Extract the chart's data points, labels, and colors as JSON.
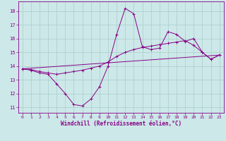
{
  "xlabel": "Windchill (Refroidissement éolien,°C)",
  "bg_color": "#cce8e8",
  "grid_color": "#aacccc",
  "line_color": "#880088",
  "xlim": [
    -0.5,
    23.5
  ],
  "ylim": [
    10.6,
    18.7
  ],
  "yticks": [
    11,
    12,
    13,
    14,
    15,
    16,
    17,
    18
  ],
  "xticks": [
    0,
    1,
    2,
    3,
    4,
    5,
    6,
    7,
    8,
    9,
    10,
    11,
    12,
    13,
    14,
    15,
    16,
    17,
    18,
    19,
    20,
    21,
    22,
    23
  ],
  "line1_x": [
    0,
    1,
    2,
    3,
    4,
    5,
    6,
    7,
    8,
    9,
    10,
    11,
    12,
    13,
    14,
    15,
    16,
    17,
    18,
    19,
    20,
    21,
    22,
    23
  ],
  "line1_y": [
    13.8,
    13.7,
    13.5,
    13.4,
    12.7,
    12.0,
    11.2,
    11.1,
    11.6,
    12.5,
    14.0,
    16.3,
    18.2,
    17.8,
    15.4,
    15.2,
    15.3,
    16.5,
    16.3,
    15.8,
    16.0,
    15.0,
    14.5,
    14.8
  ],
  "line2_x": [
    0,
    1,
    2,
    3,
    4,
    5,
    6,
    7,
    8,
    9,
    10,
    11,
    12,
    13,
    14,
    15,
    16,
    17,
    18,
    19,
    20,
    21,
    22,
    23
  ],
  "line2_y": [
    13.8,
    13.75,
    13.6,
    13.5,
    13.4,
    13.5,
    13.6,
    13.7,
    13.85,
    14.0,
    14.3,
    14.7,
    15.0,
    15.2,
    15.35,
    15.45,
    15.55,
    15.65,
    15.75,
    15.85,
    15.5,
    15.0,
    14.5,
    14.8
  ],
  "line3_x": [
    0,
    23
  ],
  "line3_y": [
    13.8,
    14.8
  ]
}
